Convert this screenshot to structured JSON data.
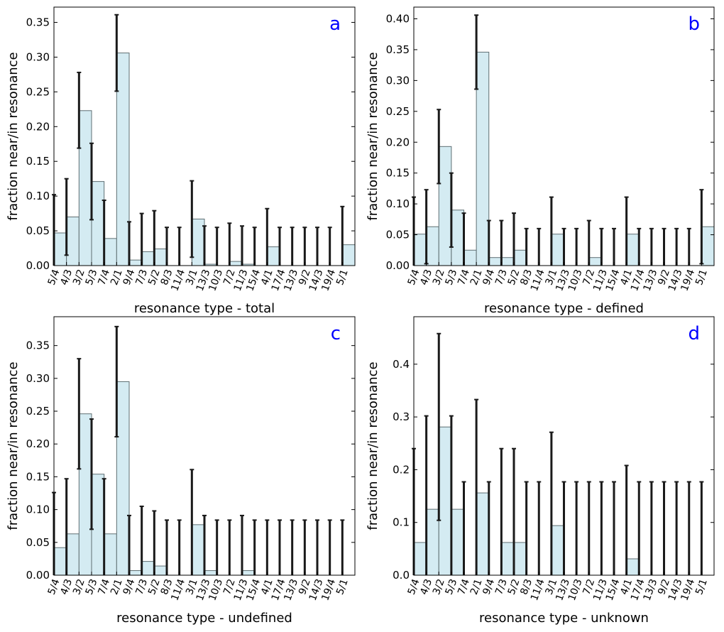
{
  "colors": {
    "bar_fill": "#d4ebf2",
    "bar_edge": "#5f6f73",
    "error_bar": "#1a1a1a",
    "panel_letter": "#0000ff"
  },
  "chart_data": [
    {
      "type": "bar",
      "panel": "a",
      "xlabel": "resonance type - total",
      "ylabel": "fraction near/in resonance",
      "ylim": [
        0,
        0.372
      ],
      "yticks": [
        "0.00",
        "0.05",
        "0.10",
        "0.15",
        "0.20",
        "0.25",
        "0.30",
        "0.35"
      ],
      "ytick_values": [
        0,
        0.05,
        0.1,
        0.15,
        0.2,
        0.25,
        0.3,
        0.35
      ],
      "categories": [
        "5/4",
        "4/3",
        "3/2",
        "5/3",
        "7/4",
        "2/1",
        "9/4",
        "7/3",
        "5/2",
        "8/3",
        "11/4",
        "3/1",
        "13/3",
        "10/3",
        "7/2",
        "11/3",
        "15/4",
        "4/1",
        "17/4",
        "13/3",
        "9/2",
        "14/3",
        "19/4",
        "5/1"
      ],
      "values": [
        0.047,
        0.07,
        0.223,
        0.121,
        0.039,
        0.306,
        0.008,
        0.02,
        0.024,
        0,
        0,
        0.067,
        0.002,
        0,
        0.006,
        0.002,
        0,
        0.027,
        0,
        0,
        0,
        0,
        0,
        0.03
      ],
      "error_low": [
        0,
        0.015,
        0.169,
        0.066,
        0,
        0.251,
        0,
        0,
        0,
        0,
        0,
        0.012,
        0,
        0,
        0,
        0,
        0,
        0,
        0,
        0,
        0,
        0,
        0,
        0
      ],
      "error_high": [
        0.102,
        0.125,
        0.278,
        0.176,
        0.094,
        0.361,
        0.063,
        0.075,
        0.079,
        0.055,
        0.055,
        0.122,
        0.057,
        0.055,
        0.061,
        0.057,
        0.055,
        0.082,
        0.055,
        0.055,
        0.055,
        0.055,
        0.055,
        0.085
      ]
    },
    {
      "type": "bar",
      "panel": "b",
      "xlabel": "resonance type - defined",
      "ylabel": "fraction near/in resonance",
      "ylim": [
        0,
        0.419
      ],
      "yticks": [
        "0.00",
        "0.05",
        "0.10",
        "0.15",
        "0.20",
        "0.25",
        "0.30",
        "0.35",
        "0.40"
      ],
      "ytick_values": [
        0,
        0.05,
        0.1,
        0.15,
        0.2,
        0.25,
        0.3,
        0.35,
        0.4
      ],
      "categories": [
        "5/4",
        "4/3",
        "3/2",
        "5/3",
        "7/4",
        "2/1",
        "9/4",
        "7/3",
        "5/2",
        "8/3",
        "11/4",
        "3/1",
        "13/3",
        "10/3",
        "7/2",
        "11/3",
        "15/4",
        "4/1",
        "17/4",
        "13/3",
        "9/2",
        "14/3",
        "19/4",
        "5/1"
      ],
      "values": [
        0.051,
        0.063,
        0.193,
        0.09,
        0.025,
        0.346,
        0.013,
        0.013,
        0.025,
        0,
        0,
        0.051,
        0,
        0,
        0.013,
        0,
        0,
        0.051,
        0,
        0,
        0,
        0,
        0,
        0.063
      ],
      "error_low": [
        0,
        0.003,
        0.133,
        0.03,
        0,
        0.286,
        0,
        0,
        0,
        0,
        0,
        0,
        0,
        0,
        0,
        0,
        0,
        0,
        0,
        0,
        0,
        0,
        0,
        0.003
      ],
      "error_high": [
        0.111,
        0.123,
        0.253,
        0.15,
        0.085,
        0.406,
        0.073,
        0.073,
        0.085,
        0.06,
        0.06,
        0.111,
        0.06,
        0.06,
        0.073,
        0.06,
        0.06,
        0.111,
        0.06,
        0.06,
        0.06,
        0.06,
        0.06,
        0.123
      ]
    },
    {
      "type": "bar",
      "panel": "c",
      "xlabel": "resonance type - undefined",
      "ylabel": "fraction near/in resonance",
      "ylim": [
        0,
        0.394
      ],
      "yticks": [
        "0.00",
        "0.05",
        "0.10",
        "0.15",
        "0.20",
        "0.25",
        "0.30",
        "0.35"
      ],
      "ytick_values": [
        0,
        0.05,
        0.1,
        0.15,
        0.2,
        0.25,
        0.3,
        0.35
      ],
      "categories": [
        "5/4",
        "4/3",
        "3/2",
        "5/3",
        "7/4",
        "2/1",
        "9/4",
        "7/3",
        "5/2",
        "8/3",
        "11/4",
        "3/1",
        "13/3",
        "10/3",
        "7/2",
        "11/3",
        "15/4",
        "4/1",
        "17/4",
        "13/3",
        "9/2",
        "14/3",
        "19/4",
        "5/1"
      ],
      "values": [
        0.042,
        0.063,
        0.246,
        0.154,
        0.063,
        0.295,
        0.007,
        0.021,
        0.014,
        0,
        0,
        0.077,
        0.007,
        0,
        0,
        0.007,
        0,
        0,
        0,
        0,
        0,
        0,
        0,
        0
      ],
      "error_low": [
        0,
        0,
        0.162,
        0.07,
        0,
        0.211,
        0,
        0,
        0,
        0,
        0,
        0,
        0,
        0,
        0,
        0,
        0,
        0,
        0,
        0,
        0,
        0,
        0,
        0
      ],
      "error_high": [
        0.126,
        0.147,
        0.33,
        0.238,
        0.147,
        0.379,
        0.091,
        0.105,
        0.098,
        0.084,
        0.084,
        0.161,
        0.091,
        0.084,
        0.084,
        0.091,
        0.084,
        0.084,
        0.084,
        0.084,
        0.084,
        0.084,
        0.084,
        0.084
      ]
    },
    {
      "type": "bar",
      "panel": "d",
      "xlabel": "resonance type - unknown",
      "ylabel": "fraction near/in resonance",
      "ylim": [
        0,
        0.49
      ],
      "yticks": [
        "0.0",
        "0.1",
        "0.2",
        "0.3",
        "0.4"
      ],
      "ytick_values": [
        0,
        0.1,
        0.2,
        0.3,
        0.4
      ],
      "categories": [
        "5/4",
        "4/3",
        "3/2",
        "5/3",
        "7/4",
        "2/1",
        "9/4",
        "7/3",
        "5/2",
        "8/3",
        "11/4",
        "3/1",
        "13/3",
        "10/3",
        "7/2",
        "11/3",
        "15/4",
        "4/1",
        "17/4",
        "13/3",
        "9/2",
        "14/3",
        "19/4",
        "5/1"
      ],
      "values": [
        0.062,
        0.125,
        0.281,
        0.125,
        0,
        0.156,
        0,
        0.062,
        0.062,
        0,
        0,
        0.094,
        0,
        0,
        0,
        0,
        0,
        0.031,
        0,
        0,
        0,
        0,
        0,
        0
      ],
      "error_low": [
        0,
        0,
        0.104,
        0,
        0,
        0,
        0,
        0,
        0,
        0,
        0,
        0,
        0,
        0,
        0,
        0,
        0,
        0,
        0,
        0,
        0,
        0,
        0,
        0
      ],
      "error_high": [
        0.24,
        0.302,
        0.458,
        0.302,
        0.177,
        0.333,
        0.177,
        0.24,
        0.24,
        0.177,
        0.177,
        0.271,
        0.177,
        0.177,
        0.177,
        0.177,
        0.177,
        0.208,
        0.177,
        0.177,
        0.177,
        0.177,
        0.177,
        0.177
      ]
    }
  ]
}
